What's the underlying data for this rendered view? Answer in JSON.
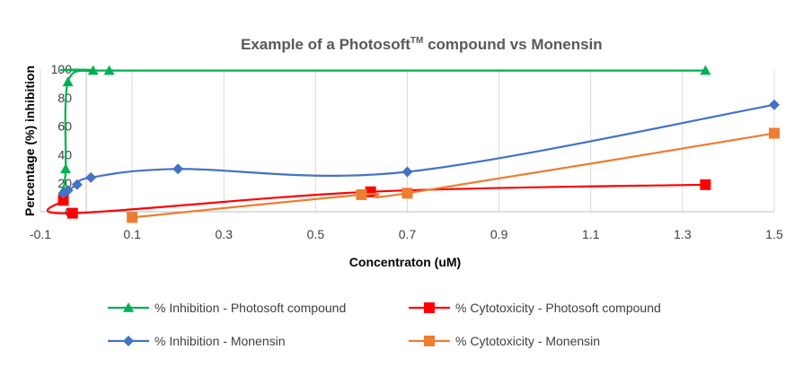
{
  "chart_data": {
    "type": "line",
    "title": "Example of a Photosoft",
    "title_superscript": "TM",
    "title_suffix": " compound vs Monensin",
    "xlabel": "Concentraton (uM)",
    "ylabel": "Percentage (%) inhibition",
    "xlim": [
      -0.1,
      1.5
    ],
    "ylim": [
      0,
      100
    ],
    "x_tick_labels": [
      "-0.1",
      "0.1",
      "0.3",
      "0.5",
      "0.7",
      "0.9",
      "1.1",
      "1.3",
      "1.5"
    ],
    "y_tick_labels": [
      "0",
      "20",
      "40",
      "60",
      "80",
      "100"
    ],
    "grid": "vertical",
    "legend_position": "bottom",
    "series": [
      {
        "name": "% Inhibition - Photosoft compound",
        "color": "#00b050",
        "marker": "triangle",
        "x": [
          -0.05,
          -0.045,
          -0.04,
          0.015,
          0.05,
          1.35
        ],
        "y": [
          15,
          30,
          91,
          99,
          99,
          99
        ]
      },
      {
        "name": "% Cytotoxicity - Photosoft compound",
        "color": "#ff0000",
        "marker": "square",
        "x": [
          -0.05,
          -0.03,
          0.62,
          1.35
        ],
        "y": [
          8,
          -1,
          14,
          19
        ]
      },
      {
        "name": "% Inhibition - Monensin",
        "color": "#4472c4",
        "marker": "diamond",
        "x": [
          -0.05,
          -0.04,
          -0.02,
          0.01,
          0.2,
          0.7,
          1.5
        ],
        "y": [
          13,
          15,
          19,
          24,
          30,
          28,
          75
        ]
      },
      {
        "name": "% Cytotoxicity - Monensin",
        "color": "#ed7d31",
        "marker": "square",
        "x": [
          0.1,
          0.6,
          0.7,
          1.5
        ],
        "y": [
          -4,
          12,
          13,
          55
        ]
      }
    ]
  }
}
